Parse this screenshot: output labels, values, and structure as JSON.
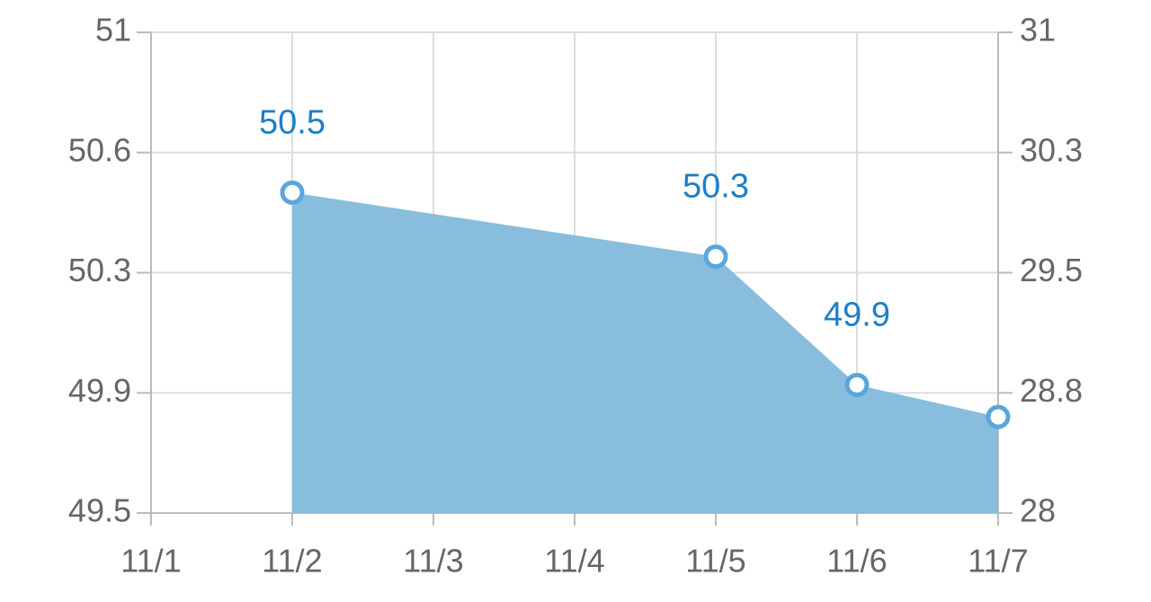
{
  "chart_data": {
    "type": "area",
    "categories": [
      "11/1",
      "11/2",
      "11/3",
      "11/4",
      "11/5",
      "11/6",
      "11/7"
    ],
    "series": [
      {
        "x": [
          "11/2",
          "11/5",
          "11/6",
          "11/7"
        ],
        "values": [
          50.5,
          50.3,
          49.9,
          49.8
        ],
        "value_labels": [
          "50.5",
          "50.3",
          "49.9",
          null
        ],
        "color": "#82b9dc",
        "marker_color": "#5aa6dc",
        "label_color": "#1a80c8"
      }
    ],
    "ylim": [
      49.5,
      51
    ],
    "yticks": [
      49.5,
      {
        "value": 49.875,
        "label": "49.9"
      },
      {
        "value": 50.25,
        "label": "50.3"
      },
      {
        "value": 50.625,
        "label": "50.6"
      },
      51
    ],
    "y2lim": [
      28,
      31
    ],
    "y2ticks": [
      28,
      {
        "value": 28.75,
        "label": "28.8"
      },
      29.5,
      {
        "value": 30.25,
        "label": "30.3"
      },
      31
    ],
    "grid": true
  }
}
